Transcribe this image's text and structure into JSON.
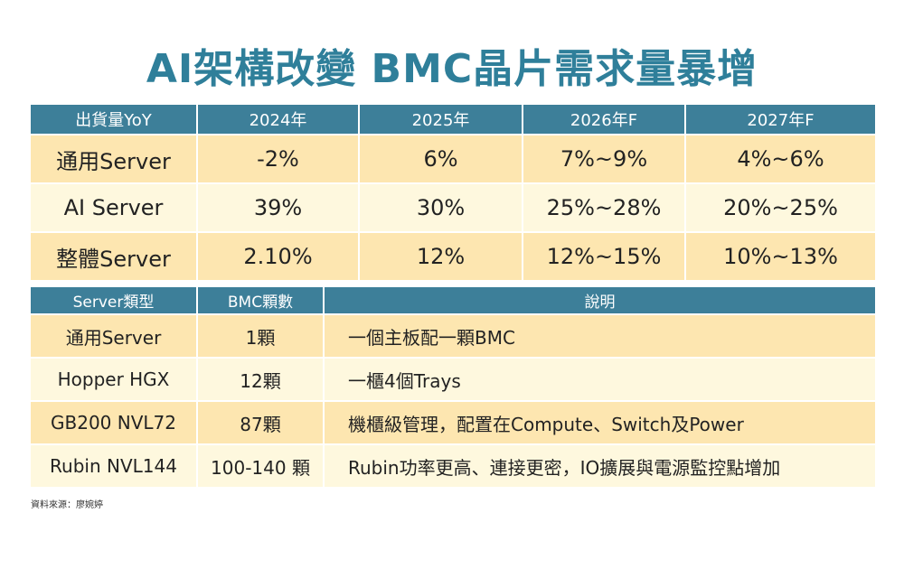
{
  "title": "AI架構改變 BMC晶片需求量暴增",
  "shipment_table": {
    "headers": [
      "出貨量YoY",
      "2024年",
      "2025年",
      "2026年F",
      "2027年F"
    ],
    "rows": [
      [
        "通用Server",
        "-2%",
        "6%",
        "7%~9%",
        "4%~6%"
      ],
      [
        "AI Server",
        "39%",
        "30%",
        "25%~28%",
        "20%~25%"
      ],
      [
        "整體Server",
        "2.10%",
        "12%",
        "12%~15%",
        "10%~13%"
      ]
    ]
  },
  "bmc_table": {
    "headers": [
      "Server類型",
      "BMC顆數",
      "說明"
    ],
    "rows": [
      [
        "通用Server",
        "1顆",
        "一個主板配一顆BMC"
      ],
      [
        "Hopper HGX",
        "12顆",
        "一櫃4個Trays"
      ],
      [
        "GB200 NVL72",
        "87顆",
        "機櫃級管理，配置在Compute、Switch及Power"
      ],
      [
        "Rubin NVL144",
        "100-140 顆",
        "Rubin功率更高、連接更密，IO擴展與電源監控點增加"
      ]
    ]
  },
  "source": "資料來源：廖婉婷",
  "colors": {
    "title": "#2f7f9a",
    "header": "#3d7f99",
    "row_dark": "#fde6b0",
    "row_light": "#fef8de"
  }
}
